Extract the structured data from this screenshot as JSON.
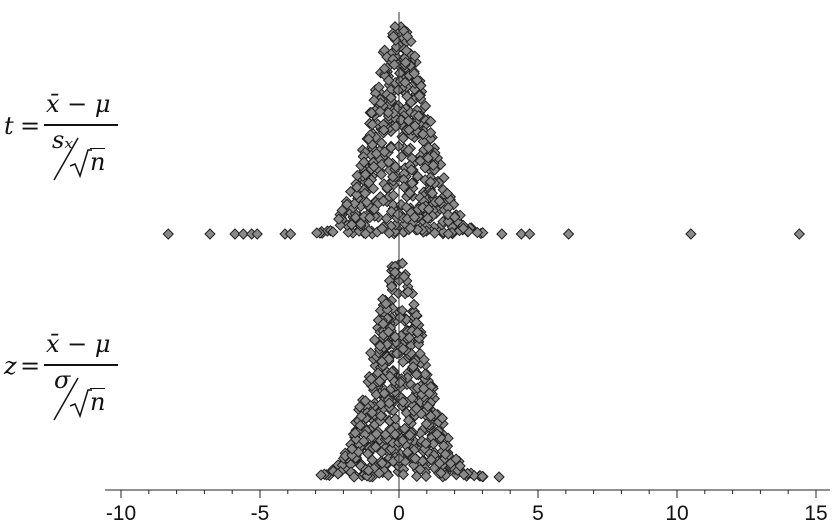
{
  "chart_data": {
    "type": "scatter",
    "subtype": "stacked dot plot (two panels)",
    "x_ticks": [
      -10,
      -5,
      0,
      5,
      10,
      15
    ],
    "xlim": [
      -10.5,
      15.5
    ],
    "grid": false,
    "marker": {
      "shape": "diamond",
      "fill": "#8a8a8a",
      "stroke": "#222222"
    },
    "panels": [
      {
        "formula": {
          "lhs": "t",
          "numerator": "x̄ − μ",
          "denominator": "sₓ",
          "root": "n"
        },
        "center_x": 0,
        "outliers": [
          -8.3,
          -6.8,
          -5.9,
          -5.6,
          -5.3,
          -5.1,
          -4.1,
          -3.9,
          3.7,
          4.4,
          4.7,
          6.1,
          10.5,
          14.4
        ]
      },
      {
        "formula": {
          "lhs": "z",
          "numerator": "x̄ − μ",
          "denominator": "σ",
          "root": "n"
        },
        "center_x": 0,
        "outliers": [
          3.6
        ]
      }
    ]
  }
}
